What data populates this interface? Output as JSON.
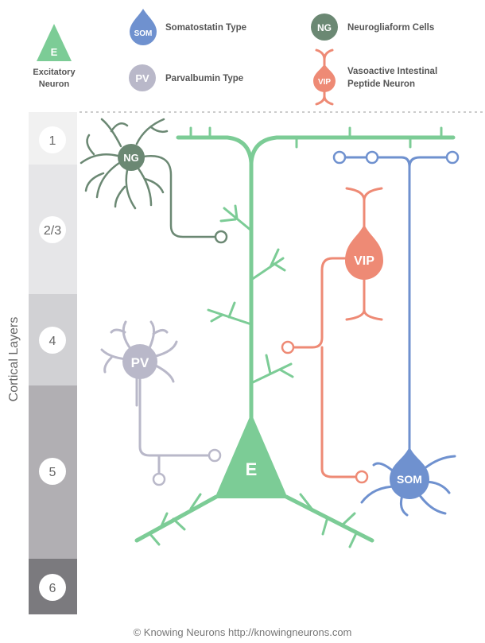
{
  "legend": {
    "excitatory": {
      "glyph": "E",
      "label_line1": "Excitatory",
      "label_line2": "Neuron"
    },
    "somatostatin": {
      "glyph": "SOM",
      "label": "Somatostatin Type"
    },
    "parvalbumin": {
      "glyph": "PV",
      "label": "Parvalbumin Type"
    },
    "neurogliaform": {
      "glyph": "NG",
      "label": "Neurogliaform Cells"
    },
    "vip": {
      "glyph": "VIP",
      "label_line1": "Vasoactive Intestinal",
      "label_line2": "Peptide Neuron"
    }
  },
  "axis_title": "Cortical Layers",
  "layers": [
    "1",
    "2/3",
    "4",
    "5",
    "6"
  ],
  "neurons": {
    "e": "E",
    "ng": "NG",
    "pv": "PV",
    "vip": "VIP",
    "som": "SOM"
  },
  "footer": "© Knowing Neurons http://knowingneurons.com",
  "colors": {
    "excitatory": "#7ccc96",
    "somatostatin": "#6f91cf",
    "parvalbumin": "#b9b8c9",
    "neurogliaform": "#6b8873",
    "vip": "#ee8a75",
    "layer_1": "#f1f1f1",
    "layer_2_3": "#e6e6e8",
    "layer_4": "#d1d1d4",
    "layer_5": "#b1afb3",
    "layer_6": "#7b7a7e"
  }
}
